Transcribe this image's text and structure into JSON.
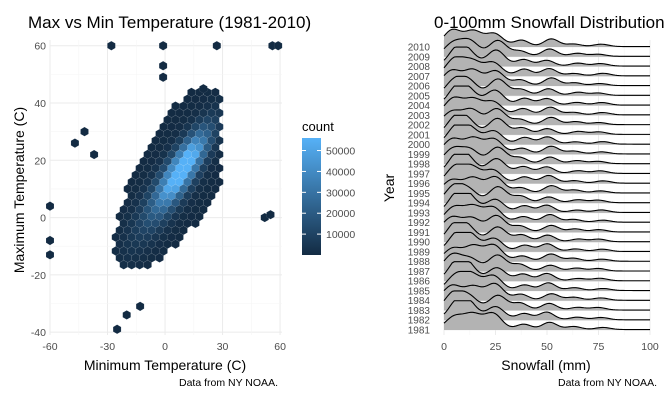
{
  "chart_data": [
    {
      "type": "hexbin",
      "title": "Max vs Min Temperature (1981-2010)",
      "xlabel": "Minimum Temperature (C)",
      "ylabel": "Maximum Temperature (C)",
      "caption": "Data from NY NOAA.",
      "x_ticks": [
        -60,
        -30,
        0,
        30,
        60
      ],
      "y_ticks": [
        -40,
        -20,
        0,
        20,
        40,
        60
      ],
      "xlim": [
        -60,
        61
      ],
      "ylim": [
        -41,
        62
      ],
      "grid": true,
      "legend": {
        "title": "count",
        "position": "right",
        "ticks": [
          10000,
          20000,
          30000,
          40000,
          50000
        ],
        "range": [
          1,
          56000
        ],
        "color_low": "#132B43",
        "color_high": "#56B1F7"
      },
      "density": {
        "center": [
          10,
          18
        ],
        "slope": 1.0,
        "note": "dense elongated cloud from about (-35,-20) to (25,35)"
      },
      "outliers": [
        [
          -28,
          60
        ],
        [
          -1,
          60
        ],
        [
          27,
          60
        ],
        [
          56,
          60
        ],
        [
          59,
          60
        ],
        [
          -1,
          53
        ],
        [
          -1,
          49
        ],
        [
          20,
          45
        ],
        [
          -42,
          30
        ],
        [
          -47,
          26
        ],
        [
          -37,
          22
        ],
        [
          -60,
          4
        ],
        [
          -60,
          -8
        ],
        [
          -60,
          -13
        ],
        [
          -20,
          -34
        ],
        [
          -25,
          -39
        ],
        [
          -13,
          -31
        ],
        [
          52,
          0
        ],
        [
          55,
          1
        ]
      ]
    },
    {
      "type": "ridgeline",
      "title": "0-100mm Snowfall Distribution",
      "xlabel": "Snowfall (mm)",
      "ylabel": "Year",
      "caption": "Data from NY NOAA.",
      "x_ticks": [
        0,
        25,
        50,
        75,
        100
      ],
      "xlim": [
        0,
        100
      ],
      "years": [
        1981,
        1982,
        1983,
        1984,
        1985,
        1986,
        1987,
        1988,
        1989,
        1990,
        1991,
        1992,
        1993,
        1994,
        1995,
        1996,
        1997,
        1998,
        1999,
        2000,
        2001,
        2002,
        2003,
        2004,
        2005,
        2006,
        2007,
        2008,
        2009,
        2010
      ],
      "fill_color": "#b3b3b3",
      "line_color": "#000000",
      "peaks_mm": [
        5,
        13,
        25,
        38,
        51,
        64,
        76
      ],
      "peak_heights": [
        1.0,
        0.9,
        0.95,
        0.4,
        0.45,
        0.18,
        0.15
      ]
    }
  ]
}
